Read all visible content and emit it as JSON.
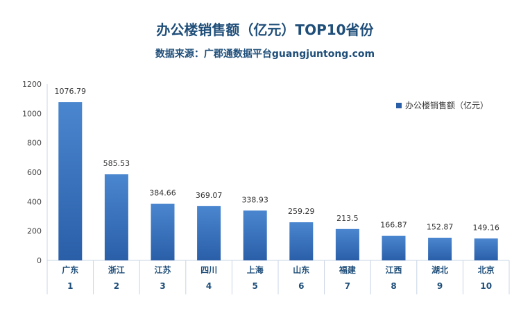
{
  "chart_data": {
    "type": "bar",
    "title": "办公楼销售额（亿元）TOP10省份",
    "subtitle": "数据来源：广郡通数据平台guangjuntong.com",
    "categories": [
      "广东",
      "浙江",
      "江苏",
      "四川",
      "上海",
      "山东",
      "福建",
      "江西",
      "湖北",
      "北京"
    ],
    "ranks": [
      "1",
      "2",
      "3",
      "4",
      "5",
      "6",
      "7",
      "8",
      "9",
      "10"
    ],
    "series": [
      {
        "name": "办公楼销售额（亿元）",
        "values": [
          1076.79,
          585.53,
          384.66,
          369.07,
          338.93,
          259.29,
          213.5,
          166.87,
          152.87,
          149.16
        ],
        "labels": [
          "1076.79",
          "585.53",
          "384.66",
          "369.07",
          "338.93",
          "259.29",
          "213.5",
          "166.87",
          "152.87",
          "149.16"
        ]
      }
    ],
    "yticks": [
      "0",
      "200",
      "400",
      "600",
      "800",
      "1000",
      "1200"
    ],
    "ylim": [
      0,
      1200
    ],
    "grid": false,
    "legend_position": "top-right",
    "bar_color_top": "#4a86cf",
    "bar_color_bottom": "#2a5fa8",
    "axis_color": "#c8d4e6"
  }
}
